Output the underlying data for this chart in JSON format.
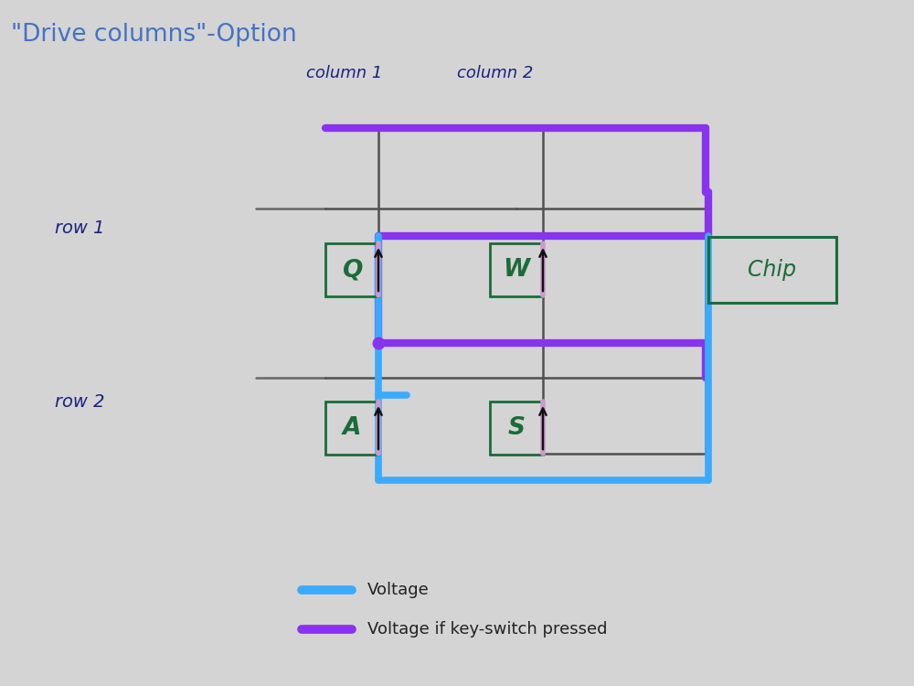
{
  "bg_color": "#d4d4d4",
  "title": "\"Drive columns\"-Option",
  "title_color": "#4472c4",
  "title_fontsize": 19,
  "hw_color": "#1a237e",
  "col1_label": "column 1",
  "col2_label": "column 2",
  "row1_label": "row 1",
  "row2_label": "row 2",
  "switch_color": "#1b6b3a",
  "wire_color": "#505050",
  "voltage_color": "#3aaaff",
  "voltage_if_color": "#8833ee",
  "diode_color": "#cc99cc",
  "legend_voltage": "Voltage",
  "legend_voltage_if": "Voltage if key-switch pressed",
  "chip_label": "Chip"
}
